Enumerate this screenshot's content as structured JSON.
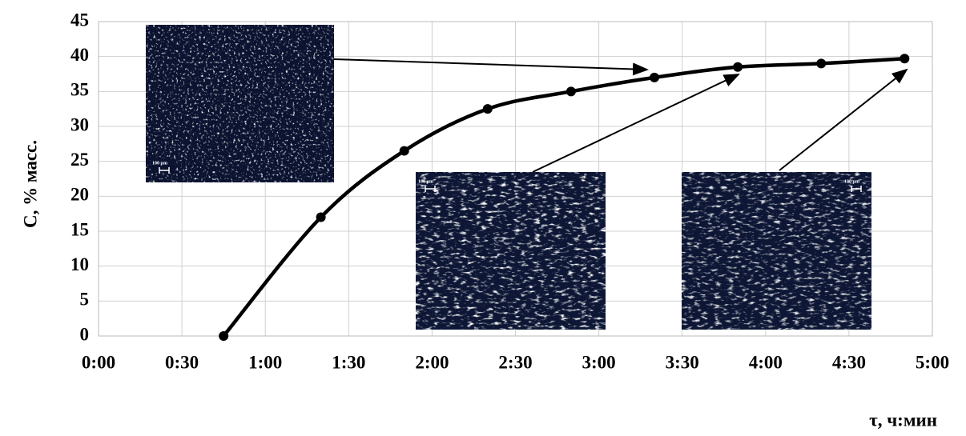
{
  "chart_data": {
    "type": "line",
    "x_label": "τ, ч:мин",
    "y_label": "C, % масс.",
    "x": [
      45,
      80,
      110,
      140,
      170,
      200,
      230,
      260,
      290
    ],
    "series": [
      {
        "color": "#000000",
        "values": [
          0,
          17,
          26.5,
          32.5,
          35,
          37,
          38.5,
          39,
          39.7
        ]
      }
    ],
    "xlim": [
      0,
      300
    ],
    "xticks": [
      {
        "value": 0,
        "label": "0:00"
      },
      {
        "value": 30,
        "label": "0:30"
      },
      {
        "value": 60,
        "label": "1:00"
      },
      {
        "value": 90,
        "label": "1:30"
      },
      {
        "value": 120,
        "label": "2:00"
      },
      {
        "value": 150,
        "label": "2:30"
      },
      {
        "value": 180,
        "label": "3:00"
      },
      {
        "value": 210,
        "label": "3:30"
      },
      {
        "value": 240,
        "label": "4:00"
      },
      {
        "value": 270,
        "label": "4:30"
      },
      {
        "value": 300,
        "label": "5:00"
      }
    ],
    "ylim": [
      0,
      45
    ],
    "yticks": [
      0,
      5,
      10,
      15,
      20,
      25,
      30,
      35,
      40,
      45
    ],
    "grid": true,
    "images": [
      {
        "label": "100 µm"
      },
      {
        "label": "100 µm"
      },
      {
        "label": "100 µm"
      }
    ]
  }
}
